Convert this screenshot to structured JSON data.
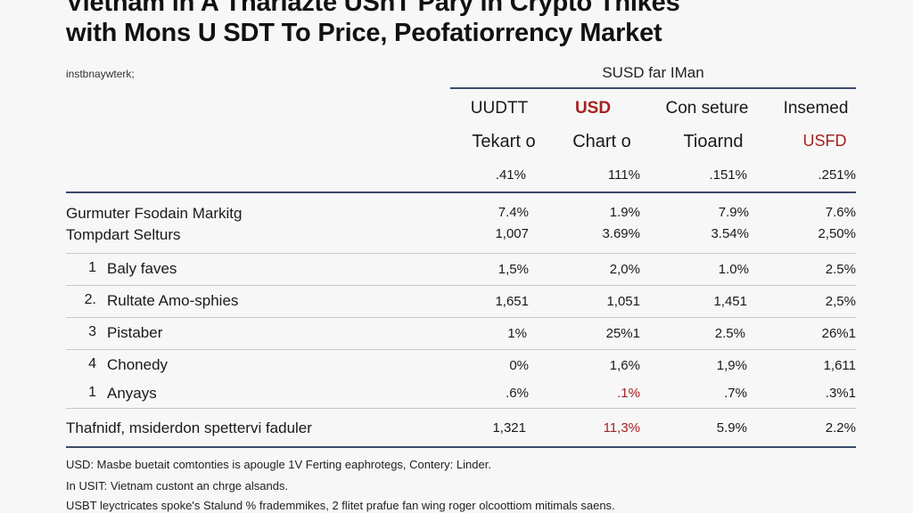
{
  "title": {
    "line1": "Vietnam in A Tharlazte USnT Pary in Crypto Tnikes",
    "line2": "with  Mons U SDT To Price, Peofatiorrency Market"
  },
  "subtitle": "instbnaywterk;",
  "group_header": "SUSD far IMan",
  "columns": [
    {
      "name": "UUDTT",
      "sub": "Tekart o",
      "pct": ".41%"
    },
    {
      "name": "USD",
      "sub": "Chart o",
      "pct": "111%"
    },
    {
      "name": "Con seture",
      "sub": "Tioarnd",
      "pct": ".151%"
    },
    {
      "name": "Insemed",
      "sub": "USFD",
      "pct": ".251%"
    }
  ],
  "summary_rows": [
    {
      "label": "Gurmuter Fsodain Markitg",
      "values": [
        "7.4%",
        "1.9%",
        "7.9%",
        "7.6%"
      ]
    },
    {
      "label": "Tompdart Selturs",
      "values": [
        "1,007",
        "3.69%",
        "3.54%",
        "2,50%"
      ]
    }
  ],
  "rows": [
    {
      "index": "1",
      "label": "Baly faves",
      "values": [
        "1,5%",
        "2,0%",
        "1.0%",
        "2.5%"
      ]
    },
    {
      "index": "2.",
      "label": "Rultate Amo-sphies",
      "values": [
        "1,651",
        "1,051",
        "1,451",
        "2,5%"
      ]
    },
    {
      "index": "3",
      "label": "Pistaber",
      "values": [
        "1%",
        "25%1",
        "2.5%",
        "26%1"
      ]
    },
    {
      "index": "4",
      "label": "Chonedy",
      "values": [
        "0%",
        "1,6%",
        "1,9%",
        "1,611"
      ]
    },
    {
      "index": "1",
      "label": "Anyays",
      "values": [
        ".6%",
        ".1%",
        ".7%",
        ".3%1"
      ]
    }
  ],
  "total_row": {
    "label": "Thafnidf, msiderdon spettervi faduler",
    "values": [
      "1,321",
      "11,3%",
      "5.9%",
      "2.2%"
    ]
  },
  "footnotes": [
    "USD: Masbe buetait comtonties is apougle 1V Ferting eaphrotegs, Contery: Linder.",
    "In USIT: Vietnam custont an chrge alsands.",
    "USBT leyctricates spoke's Stalund % frademmikes, 2 flitet prafue fan wing roger olcoottiom mitimals saens."
  ],
  "colors": {
    "accent_red": "#a52020",
    "rule_navy": "#3a4a6b"
  }
}
